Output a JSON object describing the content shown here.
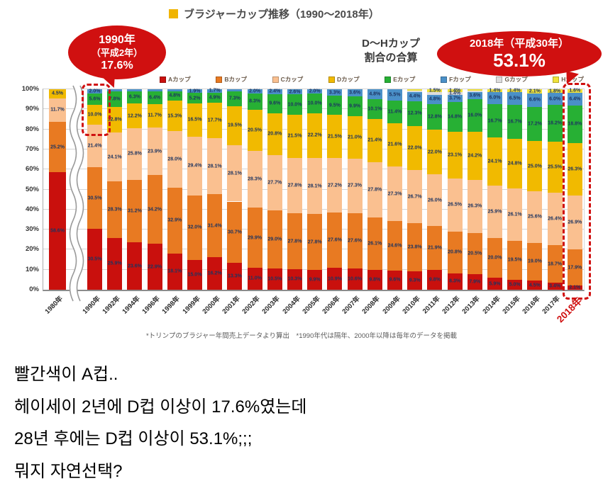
{
  "figure": {
    "title": "ブラジャーカップ推移（1990〜2018年）",
    "callout_1990": {
      "line1": "1990年",
      "line2": "（平成2年）",
      "value": "17.6%"
    },
    "callout_2018": {
      "line1": "2018年（平成30年）",
      "value": "53.1%"
    },
    "dh_note": {
      "line1": "D〜Hカップ",
      "line2": "割合の合算"
    },
    "footnote": "*トリンプのブラジャー年間売上データより算出　*1990年代は隔年、2000年以降は毎年のデータを掲載",
    "accent_color": "#d01010",
    "title_bullet_color": "#f0b400"
  },
  "caption": {
    "lines": [
      "빨간색이 A컵..",
      "헤이세이 2년에 D컵 이상이 17.6%였는데",
      "28년 후에는 D컵 이상이 53.1%;;;",
      "뭐지 자연선택?"
    ]
  },
  "chart_data": {
    "type": "bar",
    "stacked": true,
    "title": "ブラジャーカップ推移（1990〜2018年）",
    "xlabel": "",
    "ylabel": "",
    "ylim": [
      0,
      100
    ],
    "grid": true,
    "legend_position": "top",
    "label_min": 1.4,
    "yticks": [
      "0%",
      "10%",
      "20%",
      "30%",
      "40%",
      "50%",
      "60%",
      "70%",
      "80%",
      "90%",
      "100%"
    ],
    "series": [
      {
        "name": "Aカップ",
        "color": "#c9100d"
      },
      {
        "name": "Bカップ",
        "color": "#e87a22"
      },
      {
        "name": "Cカップ",
        "color": "#fac090"
      },
      {
        "name": "Dカップ",
        "color": "#f1ba00"
      },
      {
        "name": "Eカップ",
        "color": "#27b034"
      },
      {
        "name": "Fカップ",
        "color": "#4a90c8"
      },
      {
        "name": "Gカップ",
        "color": "#dcdcdc"
      },
      {
        "name": "Hカップ",
        "color": "#efe23b"
      }
    ],
    "categories": [
      "1980年",
      "1990年",
      "1992年",
      "1994年",
      "1996年",
      "1998年",
      "1999年",
      "2000年",
      "2001年",
      "2002年",
      "2003年",
      "2004年",
      "2005年",
      "2006年",
      "2007年",
      "2008年",
      "2009年",
      "2010年",
      "2011年",
      "2012年",
      "2013年",
      "2014年",
      "2015年",
      "2016年",
      "2017年",
      "2018年"
    ],
    "bars": [
      {
        "year": "1980年",
        "values": [
          58.6,
          25.2,
          11.7,
          4.5,
          0.0,
          0.0,
          0.0,
          0.0
        ]
      },
      {
        "year": "1990年",
        "values": [
          30.5,
          30.5,
          21.4,
          10.0,
          5.6,
          2.0,
          0.0,
          0.0
        ]
      },
      {
        "year": "1992年",
        "values": [
          25.9,
          28.3,
          24.1,
          12.8,
          7.8,
          1.1,
          0.0,
          0.0
        ]
      },
      {
        "year": "1994年",
        "values": [
          23.6,
          31.2,
          25.8,
          12.2,
          6.3,
          0.9,
          0.0,
          0.0
        ]
      },
      {
        "year": "1996年",
        "values": [
          22.9,
          34.2,
          23.9,
          11.7,
          6.4,
          0.9,
          0.0,
          0.0
        ]
      },
      {
        "year": "1998年",
        "values": [
          18.1,
          32.9,
          28.0,
          15.3,
          4.8,
          0.9,
          0.0,
          0.0
        ]
      },
      {
        "year": "1999年",
        "values": [
          15.0,
          32.0,
          29.4,
          16.5,
          5.2,
          1.9,
          0.0,
          0.0
        ]
      },
      {
        "year": "2000年",
        "values": [
          16.2,
          31.4,
          28.1,
          17.7,
          4.9,
          1.7,
          0.0,
          0.0
        ]
      },
      {
        "year": "2001年",
        "values": [
          13.3,
          30.7,
          28.1,
          19.5,
          7.3,
          1.1,
          0.0,
          0.0
        ]
      },
      {
        "year": "2002年",
        "values": [
          11.0,
          29.9,
          28.3,
          20.5,
          8.3,
          2.0,
          0.0,
          0.0
        ]
      },
      {
        "year": "2003年",
        "values": [
          10.5,
          29.0,
          27.7,
          20.8,
          9.6,
          2.4,
          0.0,
          0.0
        ]
      },
      {
        "year": "2004年",
        "values": [
          10.3,
          27.8,
          27.8,
          21.5,
          10.0,
          2.6,
          0.0,
          0.0
        ]
      },
      {
        "year": "2005年",
        "values": [
          9.9,
          27.8,
          28.1,
          22.2,
          10.0,
          2.0,
          0.0,
          0.0
        ]
      },
      {
        "year": "2006年",
        "values": [
          10.9,
          27.6,
          27.2,
          21.5,
          9.5,
          3.3,
          0.0,
          0.0
        ]
      },
      {
        "year": "2007年",
        "values": [
          10.6,
          27.6,
          27.3,
          21.0,
          9.9,
          3.6,
          0.0,
          0.0
        ]
      },
      {
        "year": "2008年",
        "values": [
          9.8,
          26.1,
          27.8,
          21.4,
          10.1,
          4.8,
          0.0,
          0.0
        ]
      },
      {
        "year": "2009年",
        "values": [
          9.6,
          24.6,
          27.3,
          21.6,
          11.4,
          5.5,
          0.0,
          0.0
        ]
      },
      {
        "year": "2010年",
        "values": [
          9.3,
          23.8,
          26.7,
          22.0,
          12.3,
          4.4,
          0.8,
          0.7
        ]
      },
      {
        "year": "2011年",
        "values": [
          9.8,
          21.9,
          26.0,
          22.0,
          12.8,
          4.8,
          1.2,
          1.5
        ]
      },
      {
        "year": "2012年",
        "values": [
          8.3,
          20.8,
          26.5,
          23.1,
          14.8,
          3.7,
          1.4,
          1.4
        ]
      },
      {
        "year": "2013年",
        "values": [
          7.9,
          20.5,
          26.3,
          24.2,
          16.0,
          3.6,
          0.8,
          0.7
        ]
      },
      {
        "year": "2014年",
        "values": [
          5.9,
          20.0,
          25.9,
          24.1,
          16.7,
          6.0,
          0.0,
          1.4
        ]
      },
      {
        "year": "2015年",
        "values": [
          5.0,
          19.5,
          26.1,
          24.8,
          16.7,
          6.5,
          0.0,
          1.4
        ]
      },
      {
        "year": "2016年",
        "values": [
          4.5,
          19.0,
          25.6,
          25.0,
          17.2,
          6.6,
          0.0,
          2.1
        ]
      },
      {
        "year": "2017年",
        "values": [
          3.4,
          18.7,
          26.4,
          25.5,
          18.2,
          6.0,
          0.0,
          1.8
        ]
      },
      {
        "year": "2018年",
        "values": [
          2.1,
          17.9,
          26.9,
          26.3,
          18.8,
          6.4,
          0.0,
          1.6
        ]
      }
    ]
  }
}
